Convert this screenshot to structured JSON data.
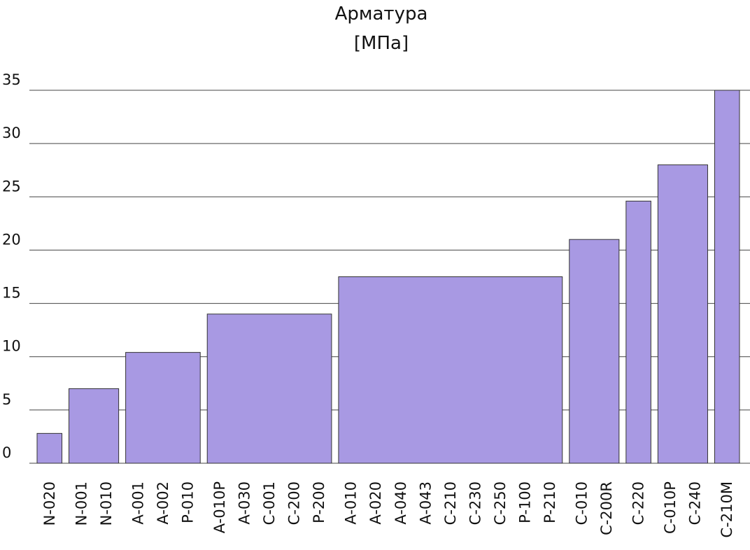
{
  "chart_data": {
    "type": "bar",
    "title": "Арматура",
    "subtitle": "[МПа]",
    "color": "#a899e3",
    "groups": [
      {
        "categories": [
          "N-020"
        ],
        "value": 2.8
      },
      {
        "categories": [
          "N-001",
          "N-010"
        ],
        "value": 7
      },
      {
        "categories": [
          "A-001",
          "A-002",
          "P-010"
        ],
        "value": 10.4
      },
      {
        "categories": [
          "A-010P",
          "A-030",
          "C-001",
          "C-200",
          "P-200"
        ],
        "value": 14
      },
      {
        "categories": [
          "A-010",
          "A-020",
          "A-040",
          "A-043",
          "C-210",
          "C-230",
          "C-250",
          "P-100",
          "P-210"
        ],
        "value": 17.5
      },
      {
        "categories": [
          "C-010",
          "C-200R"
        ],
        "value": 21
      },
      {
        "categories": [
          "C-220"
        ],
        "value": 24.6
      },
      {
        "categories": [
          "C-010P",
          "C-240"
        ],
        "value": 28
      },
      {
        "categories": [
          "C-210M"
        ],
        "value": 35
      }
    ],
    "ylim": [
      0,
      35
    ],
    "yticks": [
      0,
      5,
      10,
      15,
      20,
      25,
      30,
      35
    ],
    "grid": true
  }
}
